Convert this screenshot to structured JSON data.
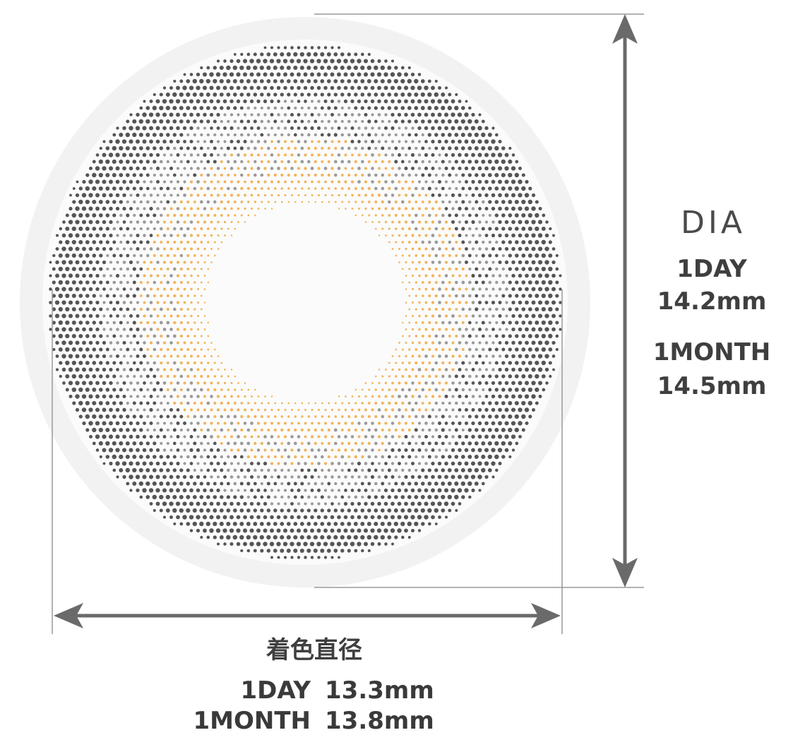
{
  "dia": {
    "title": "DIA",
    "day_label": "1DAY",
    "day_value": "14.2mm",
    "month_label": "1MONTH",
    "month_value": "14.5mm"
  },
  "coloring_diameter": {
    "title": "着色直径",
    "day_label": "1DAY",
    "day_value": "13.3mm",
    "month_label": "1MONTH",
    "month_value": "13.8mm"
  },
  "colors": {
    "lens_outer": "#f0f0f0",
    "dark_dots": "#555555",
    "mid_dots": "#9a9a9a",
    "orange_dots": "#f2b45c",
    "lines": "#6a6a6a"
  }
}
